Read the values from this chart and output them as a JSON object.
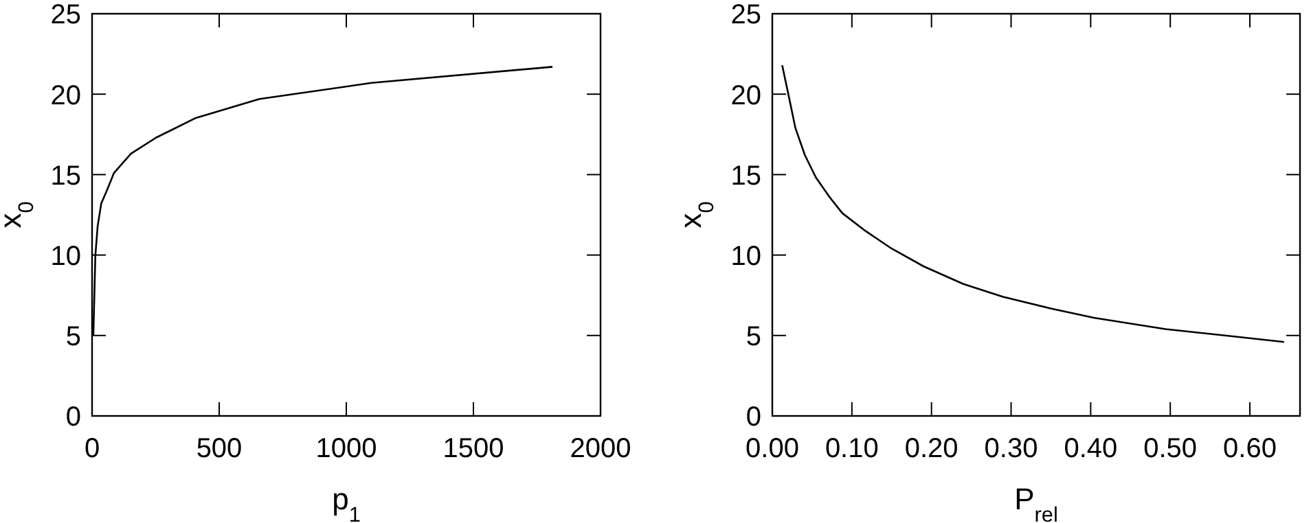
{
  "chart_data": [
    {
      "type": "line",
      "xlabel": "p$_{1}$",
      "ylabel": "x$_{0}$",
      "xlim": [
        0,
        2000
      ],
      "ylim": [
        0,
        25
      ],
      "xticks": [
        0,
        500,
        1000,
        1500,
        2000
      ],
      "yticks": [
        0,
        5,
        10,
        15,
        20,
        25
      ],
      "grid": false,
      "series": [
        {
          "color": "#000000",
          "x": [
            5,
            13,
            22,
            36,
            58,
            86,
            153,
            252,
            405,
            658,
            1099,
            1811
          ],
          "values": [
            5.0,
            10.0,
            11.8,
            13.2,
            14.0,
            15.1,
            16.3,
            17.3,
            18.5,
            19.7,
            20.7,
            21.7
          ]
        }
      ]
    },
    {
      "type": "line",
      "xlabel": "P$_{rel}$",
      "ylabel": "x$_{0}$",
      "xlim": [
        0,
        0.663
      ],
      "ylim": [
        0,
        25
      ],
      "xticks": [
        {
          "value": 0,
          "label": "0.00"
        },
        {
          "value": 0.1,
          "label": "0.10"
        },
        {
          "value": 0.2,
          "label": "0.20"
        },
        {
          "value": 0.3,
          "label": "0.30"
        },
        {
          "value": 0.4,
          "label": "0.40"
        },
        {
          "value": 0.5,
          "label": "0.50"
        },
        {
          "value": 0.6,
          "label": "0.60"
        }
      ],
      "yticks": [
        0,
        5,
        10,
        15,
        20,
        25
      ],
      "grid": false,
      "series": [
        {
          "color": "#000000",
          "x": [
            0.0124,
            0.021,
            0.029,
            0.041,
            0.055,
            0.072,
            0.088,
            0.117,
            0.15,
            0.19,
            0.24,
            0.29,
            0.348,
            0.404,
            0.494,
            0.643
          ],
          "values": [
            21.8,
            19.8,
            17.9,
            16.2,
            14.8,
            13.6,
            12.6,
            11.5,
            10.4,
            9.3,
            8.2,
            7.4,
            6.7,
            6.1,
            5.4,
            4.6
          ]
        }
      ]
    }
  ]
}
